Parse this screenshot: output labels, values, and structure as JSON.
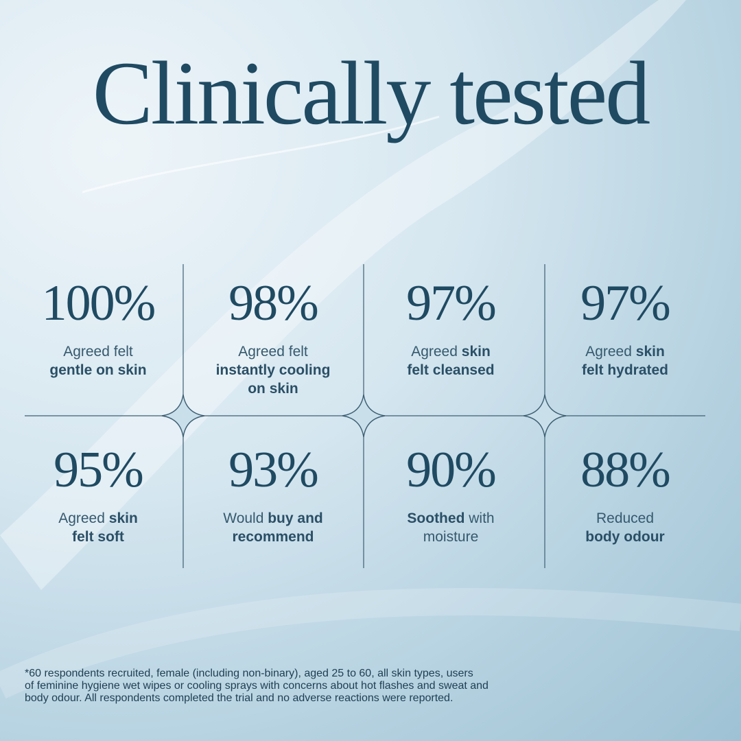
{
  "title": "Clinically tested",
  "stats": [
    {
      "value": "100%",
      "lines": [
        [
          {
            "text": "Agreed felt"
          }
        ],
        [
          {
            "text": "gentle on skin",
            "bold": true
          }
        ]
      ]
    },
    {
      "value": "98%",
      "lines": [
        [
          {
            "text": "Agreed felt"
          }
        ],
        [
          {
            "text": "instantly cooling",
            "bold": true
          }
        ],
        [
          {
            "text": "on skin",
            "bold": true
          }
        ]
      ]
    },
    {
      "value": "97%",
      "lines": [
        [
          {
            "text": "Agreed "
          },
          {
            "text": "skin",
            "bold": true
          }
        ],
        [
          {
            "text": "felt cleansed",
            "bold": true
          }
        ]
      ]
    },
    {
      "value": "97%",
      "lines": [
        [
          {
            "text": "Agreed "
          },
          {
            "text": "skin",
            "bold": true
          }
        ],
        [
          {
            "text": "felt hydrated",
            "bold": true
          }
        ]
      ]
    },
    {
      "value": "95%",
      "lines": [
        [
          {
            "text": "Agreed "
          },
          {
            "text": "skin",
            "bold": true
          }
        ],
        [
          {
            "text": "felt soft",
            "bold": true
          }
        ]
      ]
    },
    {
      "value": "93%",
      "lines": [
        [
          {
            "text": "Would "
          },
          {
            "text": "buy and",
            "bold": true
          }
        ],
        [
          {
            "text": "recommend",
            "bold": true
          }
        ]
      ]
    },
    {
      "value": "90%",
      "lines": [
        [
          {
            "text": "Soothed",
            "bold": true
          },
          {
            "text": " with"
          }
        ],
        [
          {
            "text": "moisture"
          }
        ]
      ]
    },
    {
      "value": "88%",
      "lines": [
        [
          {
            "text": "Reduced"
          }
        ],
        [
          {
            "text": "body odour",
            "bold": true
          }
        ]
      ]
    }
  ],
  "footnote": [
    "*60 respondents recruited, female (including non-binary), aged 25 to 60, all skin types, users",
    "of feminine hygiene wet wipes or cooling sprays with concerns about hot flashes and sweat and",
    "body odour. All respondents completed the trial and no adverse reactions were reported."
  ]
}
